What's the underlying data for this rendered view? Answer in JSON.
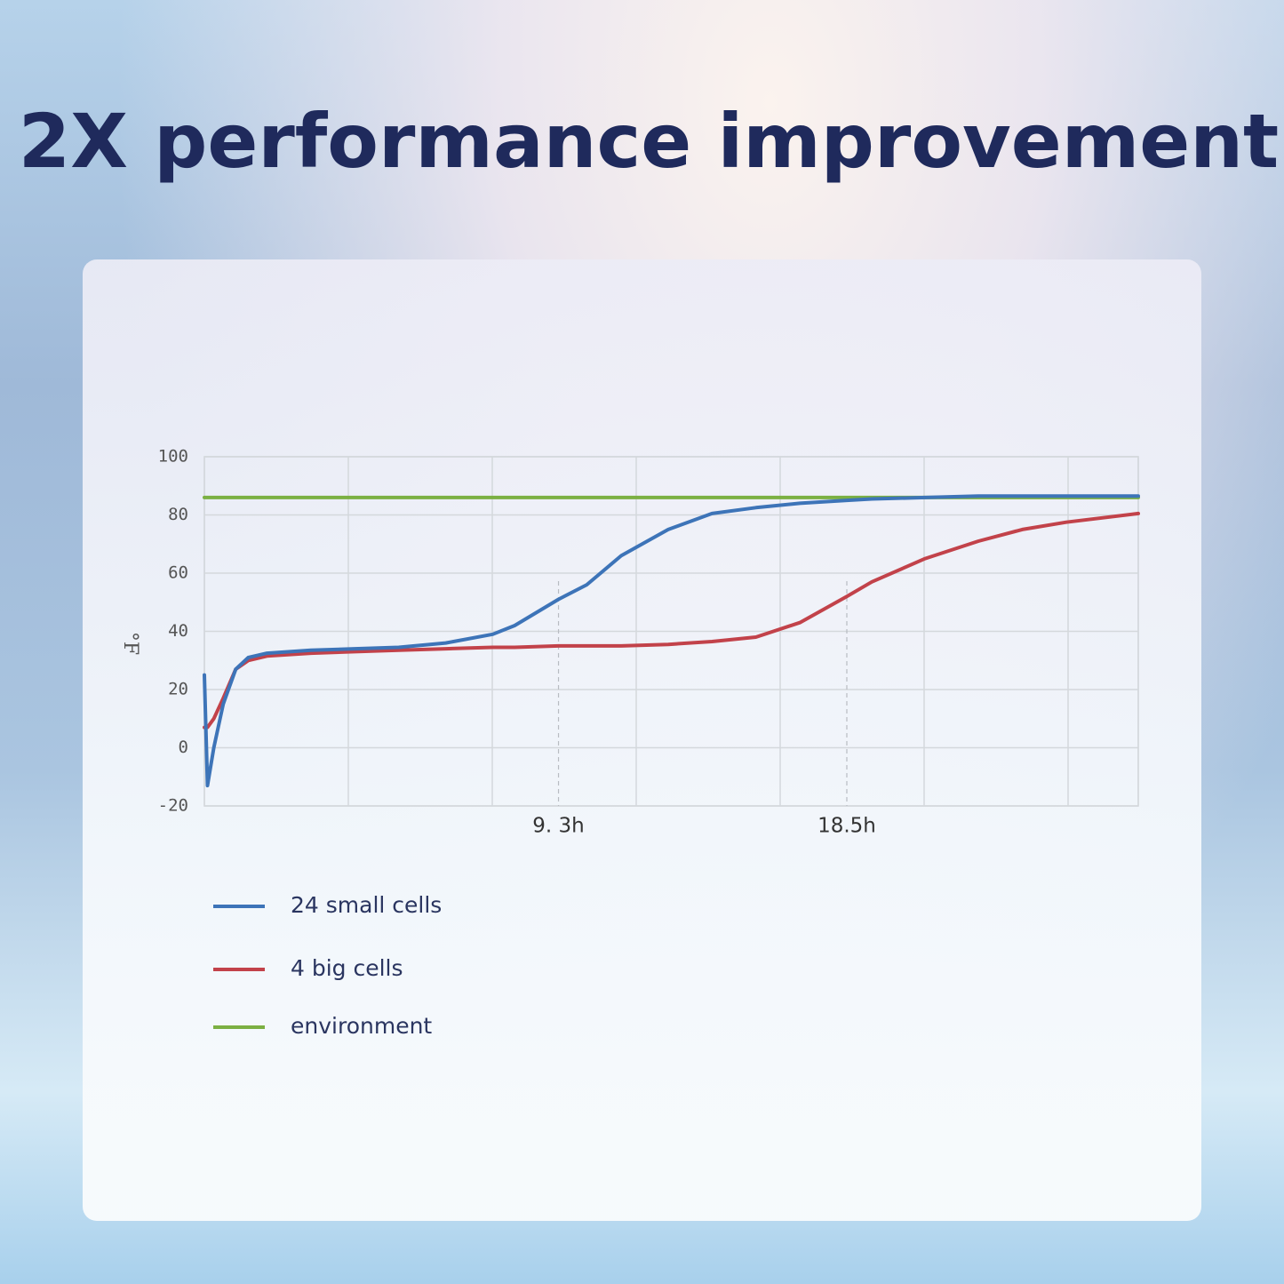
{
  "chart_data": {
    "type": "line",
    "title": "2X performance improvement",
    "y_label": "°F",
    "x": [
      -2,
      -1.9,
      -1.7,
      -1.4,
      -1,
      -0.6,
      0,
      1.4,
      2.8,
      4.2,
      5.7,
      7.2,
      7.9,
      9.3,
      10.2,
      11.3,
      12.8,
      14.2,
      15.6,
      17,
      18.5,
      19.3,
      21,
      22.7,
      24.1,
      25.5,
      27.8
    ],
    "series": [
      {
        "name": "24 small cells",
        "color": "#3d74b8",
        "values": [
          25,
          -13,
          0,
          15,
          27,
          31,
          32.5,
          33.5,
          34,
          34.5,
          36,
          39,
          42,
          51,
          56,
          66,
          75,
          80.5,
          82.5,
          84,
          85,
          85.5,
          86,
          86.5,
          86.5,
          86.5,
          86.5
        ]
      },
      {
        "name": "4 big cells",
        "color": "#c2424a",
        "values": [
          7,
          7,
          10,
          17,
          27,
          30,
          31.5,
          32.5,
          33,
          33.5,
          34,
          34.5,
          34.5,
          35,
          35,
          35,
          35.5,
          36.5,
          38,
          43,
          52,
          57,
          65,
          71,
          75,
          77.5,
          80.5
        ]
      },
      {
        "name": "environment",
        "color": "#7bb042",
        "values": [
          86,
          86,
          86,
          86,
          86,
          86,
          86,
          86,
          86,
          86,
          86,
          86,
          86,
          86,
          86,
          86,
          86,
          86,
          86,
          86,
          86,
          86,
          86,
          86,
          86,
          86,
          86
        ]
      }
    ],
    "xlim": [
      -2,
      27.8
    ],
    "ylim": [
      -20,
      100
    ],
    "xticks": [
      {
        "value": 9.3,
        "label": "9. 3h"
      },
      {
        "value": 18.5,
        "label": "18.5h"
      }
    ],
    "yticks": [
      100,
      80,
      60,
      40,
      20,
      0,
      -20
    ],
    "grid": true
  }
}
